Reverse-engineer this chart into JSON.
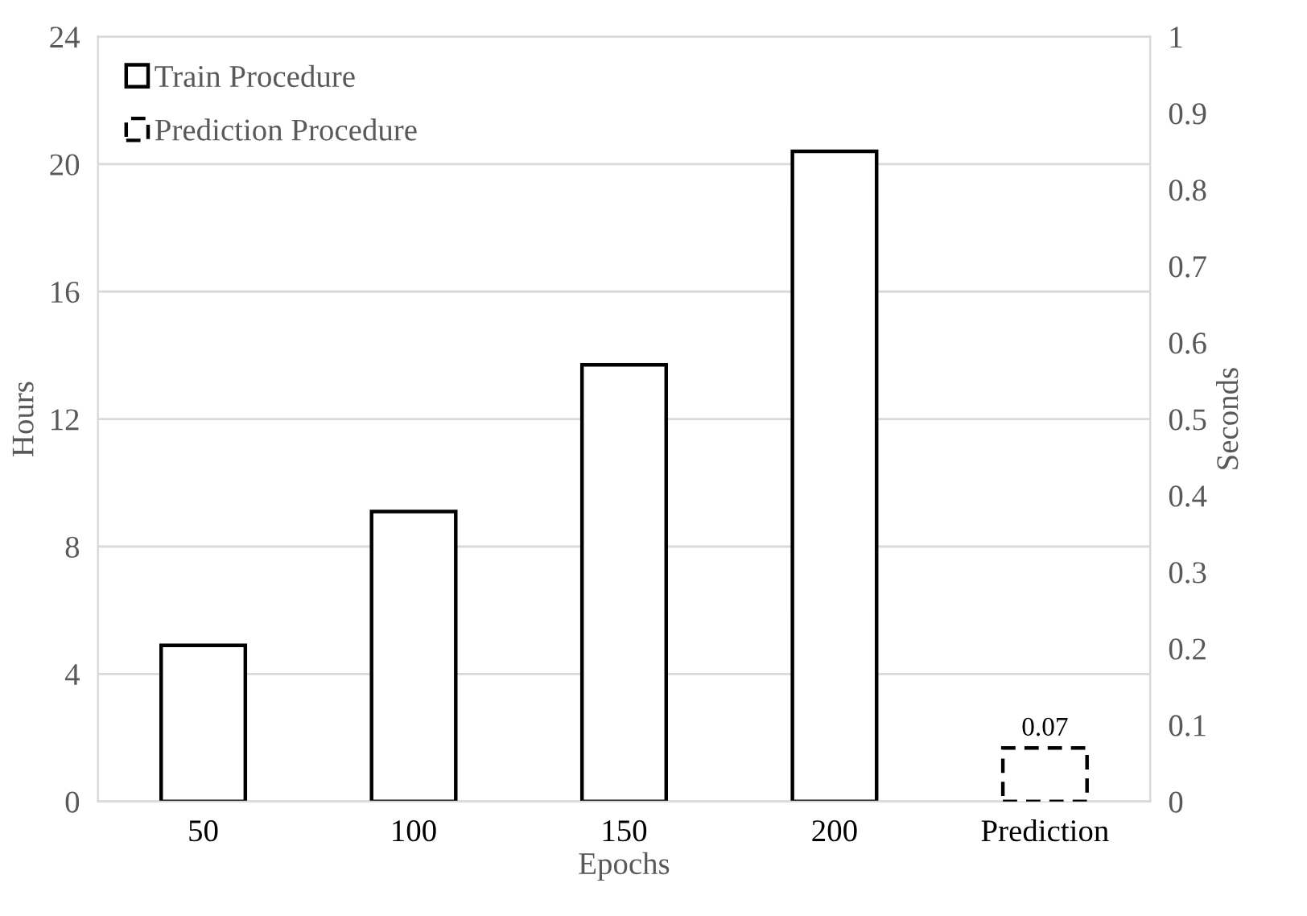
{
  "chart_data": {
    "type": "bar",
    "xlabel": "Epochs",
    "ylabel": "Hours",
    "y2label": "Seconds",
    "categories": [
      "50",
      "100",
      "150",
      "200",
      "Prediction"
    ],
    "series": [
      {
        "name": "Train Procedure",
        "color": "#000000",
        "line_style": "solid",
        "values": [
          4.9,
          9.1,
          13.7,
          20.4,
          null
        ]
      },
      {
        "name": "Prediction Procedure",
        "color": "#000000",
        "line_style": "dashed",
        "axis": "y2",
        "values": [
          null,
          null,
          null,
          null,
          0.07
        ],
        "value_labels": [
          null,
          null,
          null,
          null,
          "0.07"
        ]
      }
    ],
    "ylim": [
      0,
      24
    ],
    "yticks": [
      0,
      4,
      8,
      12,
      16,
      20,
      24
    ],
    "y2lim": [
      0,
      1
    ],
    "y2ticks": [
      0,
      {
        "value": 0.1,
        "label": "0.1"
      },
      {
        "value": 0.2,
        "label": "0.2"
      },
      {
        "value": 0.3,
        "label": "0.3"
      },
      {
        "value": 0.4,
        "label": "0.4"
      },
      {
        "value": 0.5,
        "label": "0.5"
      },
      {
        "value": 0.6,
        "label": "0.6"
      },
      {
        "value": 0.7,
        "label": "0.7"
      },
      {
        "value": 0.8,
        "label": "0.8"
      },
      {
        "value": 0.9,
        "label": "0.9"
      },
      1
    ],
    "grid": "y",
    "legend": "top left"
  }
}
